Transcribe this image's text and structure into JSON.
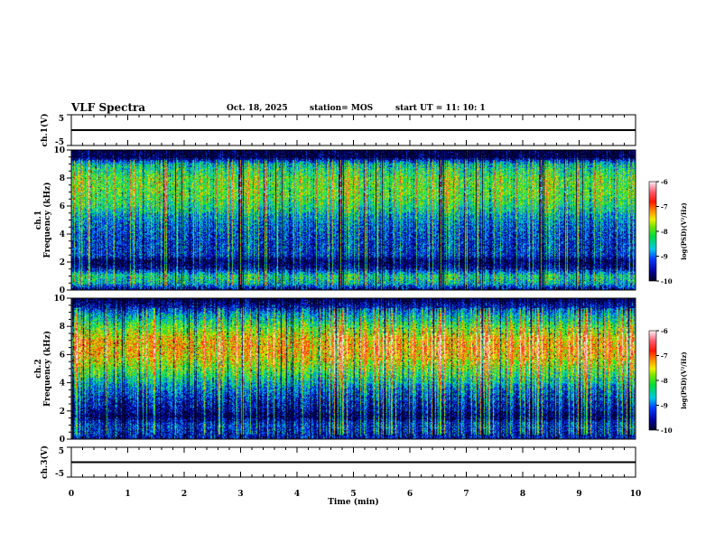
{
  "header": {
    "title": "VLF Spectra",
    "date": "Oct. 18, 2025",
    "station": "station= MOS",
    "start": "start  UT =    11: 10: 1"
  },
  "chart_data": {
    "type": "heatmap",
    "xlabel": "Time  (min)",
    "xlim": [
      0,
      10
    ],
    "xticks": [
      "0",
      "1",
      "2",
      "3",
      "4",
      "5",
      "6",
      "7",
      "8",
      "9",
      "10"
    ],
    "panels": [
      {
        "name": "ch.1(V)",
        "type": "line",
        "ylabel": "ch.1(V)",
        "ylim": [
          -5,
          5
        ],
        "yticks": [
          "5",
          "-5"
        ],
        "level": 0
      },
      {
        "name": "ch.1",
        "type": "heatmap",
        "ylabel": "ch.1\nFrequency  (kHz)",
        "ylabel_lines": [
          "ch.1",
          "Frequency  (kHz)"
        ],
        "ylim": [
          0,
          10
        ],
        "yticks": [
          "0",
          "2",
          "4",
          "6",
          "8",
          "10"
        ],
        "band_profile_logpsd": [
          [
            0,
            -9.6
          ],
          [
            0.5,
            -8.6
          ],
          [
            1.0,
            -8.4
          ],
          [
            1.5,
            -9.6
          ],
          [
            2,
            -10
          ],
          [
            2.5,
            -9.3
          ],
          [
            4,
            -9.2
          ],
          [
            5,
            -8.9
          ],
          [
            6,
            -8.3
          ],
          [
            7,
            -8.0
          ],
          [
            8,
            -8.0
          ],
          [
            9,
            -8.6
          ],
          [
            9.5,
            -10
          ],
          [
            10,
            -10
          ]
        ]
      },
      {
        "name": "ch.2",
        "type": "heatmap",
        "ylabel": "ch.2\nFrequency  (kHz)",
        "ylabel_lines": [
          "ch.2",
          "Frequency  (kHz)"
        ],
        "ylim": [
          0,
          10
        ],
        "yticks": [
          "0",
          "2",
          "4",
          "6",
          "8",
          "10"
        ],
        "band_profile_logpsd": [
          [
            0,
            -9.4
          ],
          [
            1,
            -9.2
          ],
          [
            1.6,
            -9.9
          ],
          [
            2,
            -9.6
          ],
          [
            3,
            -9.2
          ],
          [
            4,
            -8.6
          ],
          [
            5,
            -7.9
          ],
          [
            6,
            -7.3
          ],
          [
            7,
            -7.3
          ],
          [
            8,
            -8.0
          ],
          [
            9,
            -8.9
          ],
          [
            9.5,
            -9.6
          ],
          [
            10,
            -10
          ]
        ]
      },
      {
        "name": "ch.3(V)",
        "type": "line",
        "ylabel": "ch.3(V)",
        "ylim": [
          -5,
          5
        ],
        "yticks": [
          "5",
          "-5"
        ],
        "level": 0
      }
    ],
    "colorbar": {
      "label": "log(PSD)(V²/Hz)",
      "range": [
        -10,
        -6
      ],
      "ticks": [
        "-6",
        "-7",
        "-8",
        "-9",
        "-10"
      ]
    }
  }
}
